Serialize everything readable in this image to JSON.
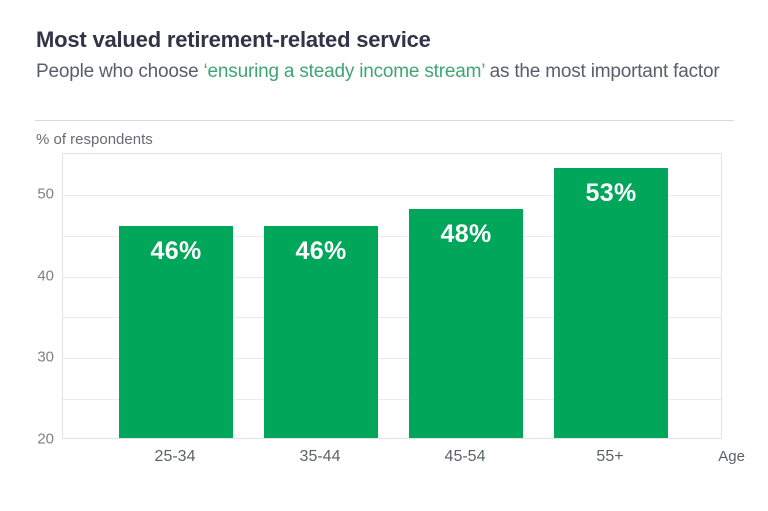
{
  "header": {
    "title": "Most valued retirement-related service",
    "subtitle_prefix": "People who choose ",
    "subtitle_highlight": "‘ensuring a steady income stream’",
    "subtitle_suffix": " as the most important factor"
  },
  "chart_data": {
    "type": "bar",
    "title": "Most valued retirement-related service",
    "subtitle": "People who choose ‘ensuring a steady income stream’ as the most important factor",
    "unit_label": "% of respondents",
    "categories": [
      "25-34",
      "35-44",
      "45-54",
      "55+"
    ],
    "values": [
      46,
      46,
      48,
      53
    ],
    "data_labels": [
      "46%",
      "46%",
      "48%",
      "53%"
    ],
    "xlabel": "Age",
    "ylabel": "% of respondents",
    "ylim": [
      20,
      55
    ],
    "yticks": [
      50,
      40,
      30,
      20
    ],
    "gridline_interval": 5,
    "grid": true,
    "legend_position": "none",
    "colors": {
      "bar": "#00a65a",
      "bar_label": "#ffffff",
      "subtitle_highlight": "#3fa673",
      "title": "#2f3545",
      "subtitle": "#575f68",
      "axis_text": "#5c6368",
      "tick_text": "#7d8287",
      "gridline": "#ebebeb",
      "plot_border": "#e2e2e2",
      "divider": "#dadada"
    }
  }
}
